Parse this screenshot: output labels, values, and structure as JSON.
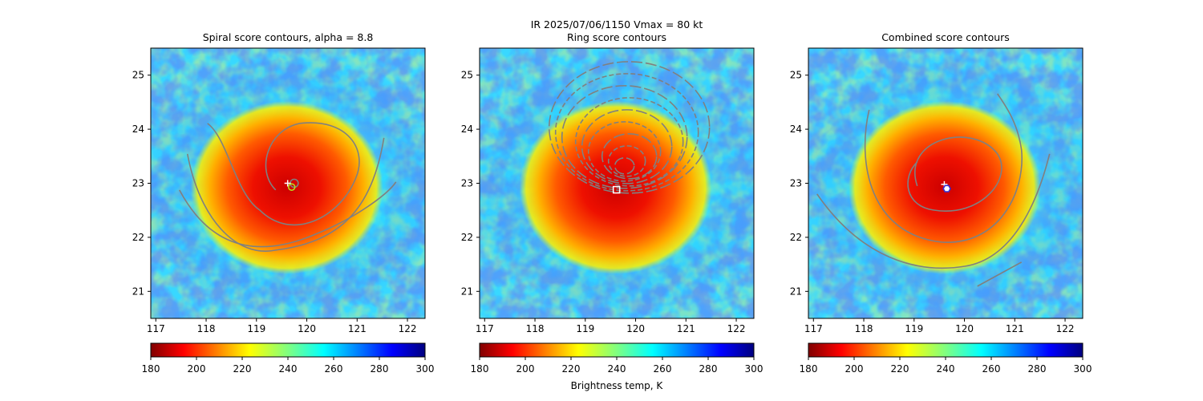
{
  "figure": {
    "suptitle_line1": "IR  2025/07/06/1150    Vmax = 80 kt",
    "colorbar_label": "Brightness temp, K"
  },
  "chart_data": [
    {
      "type": "heatmap",
      "title": "Spiral score contours, alpha =  8.8",
      "xlabel": "",
      "ylabel": "",
      "xlim": [
        116.9,
        122.35
      ],
      "ylim": [
        20.5,
        25.5
      ],
      "xticks": [
        "117",
        "118",
        "119",
        "120",
        "121",
        "122"
      ],
      "yticks": [
        "21",
        "22",
        "23",
        "24",
        "25"
      ],
      "colorbar": {
        "ticks": [
          "180",
          "200",
          "220",
          "240",
          "260",
          "280",
          "300"
        ],
        "range": [
          180,
          300
        ],
        "colormap": "jet_r"
      },
      "center": [
        119.7,
        22.95
      ],
      "markers": [
        {
          "kind": "plus",
          "lon": 119.62,
          "lat": 23.0,
          "color": "#ffffff"
        },
        {
          "kind": "circle",
          "lon": 119.7,
          "lat": 22.93,
          "color": "#b5e61d"
        }
      ],
      "contour_color": "#808080"
    },
    {
      "type": "heatmap",
      "title": "Ring score contours",
      "xlabel": "",
      "ylabel": "",
      "xlim": [
        116.9,
        122.35
      ],
      "ylim": [
        20.5,
        25.5
      ],
      "xticks": [
        "117",
        "118",
        "119",
        "120",
        "121",
        "122"
      ],
      "yticks": [
        "21",
        "22",
        "23",
        "24",
        "25"
      ],
      "colorbar": {
        "ticks": [
          "180",
          "200",
          "220",
          "240",
          "260",
          "280",
          "300"
        ],
        "range": [
          180,
          300
        ],
        "colormap": "jet_r"
      },
      "center": [
        119.7,
        22.95
      ],
      "markers": [
        {
          "kind": "square",
          "lon": 119.62,
          "lat": 22.88,
          "color": "#ffffff"
        }
      ],
      "contour_color": "#808080"
    },
    {
      "type": "heatmap",
      "title": "Combined score contours",
      "xlabel": "",
      "ylabel": "",
      "xlim": [
        116.9,
        122.35
      ],
      "ylim": [
        20.5,
        25.5
      ],
      "xticks": [
        "117",
        "118",
        "119",
        "120",
        "121",
        "122"
      ],
      "yticks": [
        "21",
        "22",
        "23",
        "24",
        "25"
      ],
      "colorbar": {
        "ticks": [
          "180",
          "200",
          "220",
          "240",
          "260",
          "280",
          "300"
        ],
        "range": [
          180,
          300
        ],
        "colormap": "jet_r"
      },
      "center": [
        119.7,
        22.95
      ],
      "markers": [
        {
          "kind": "plus",
          "lon": 119.6,
          "lat": 22.98,
          "color": "#ffffff"
        },
        {
          "kind": "hexagon",
          "lon": 119.65,
          "lat": 22.9,
          "color": "#3a2fd0"
        }
      ],
      "contour_color": "#808080"
    }
  ]
}
